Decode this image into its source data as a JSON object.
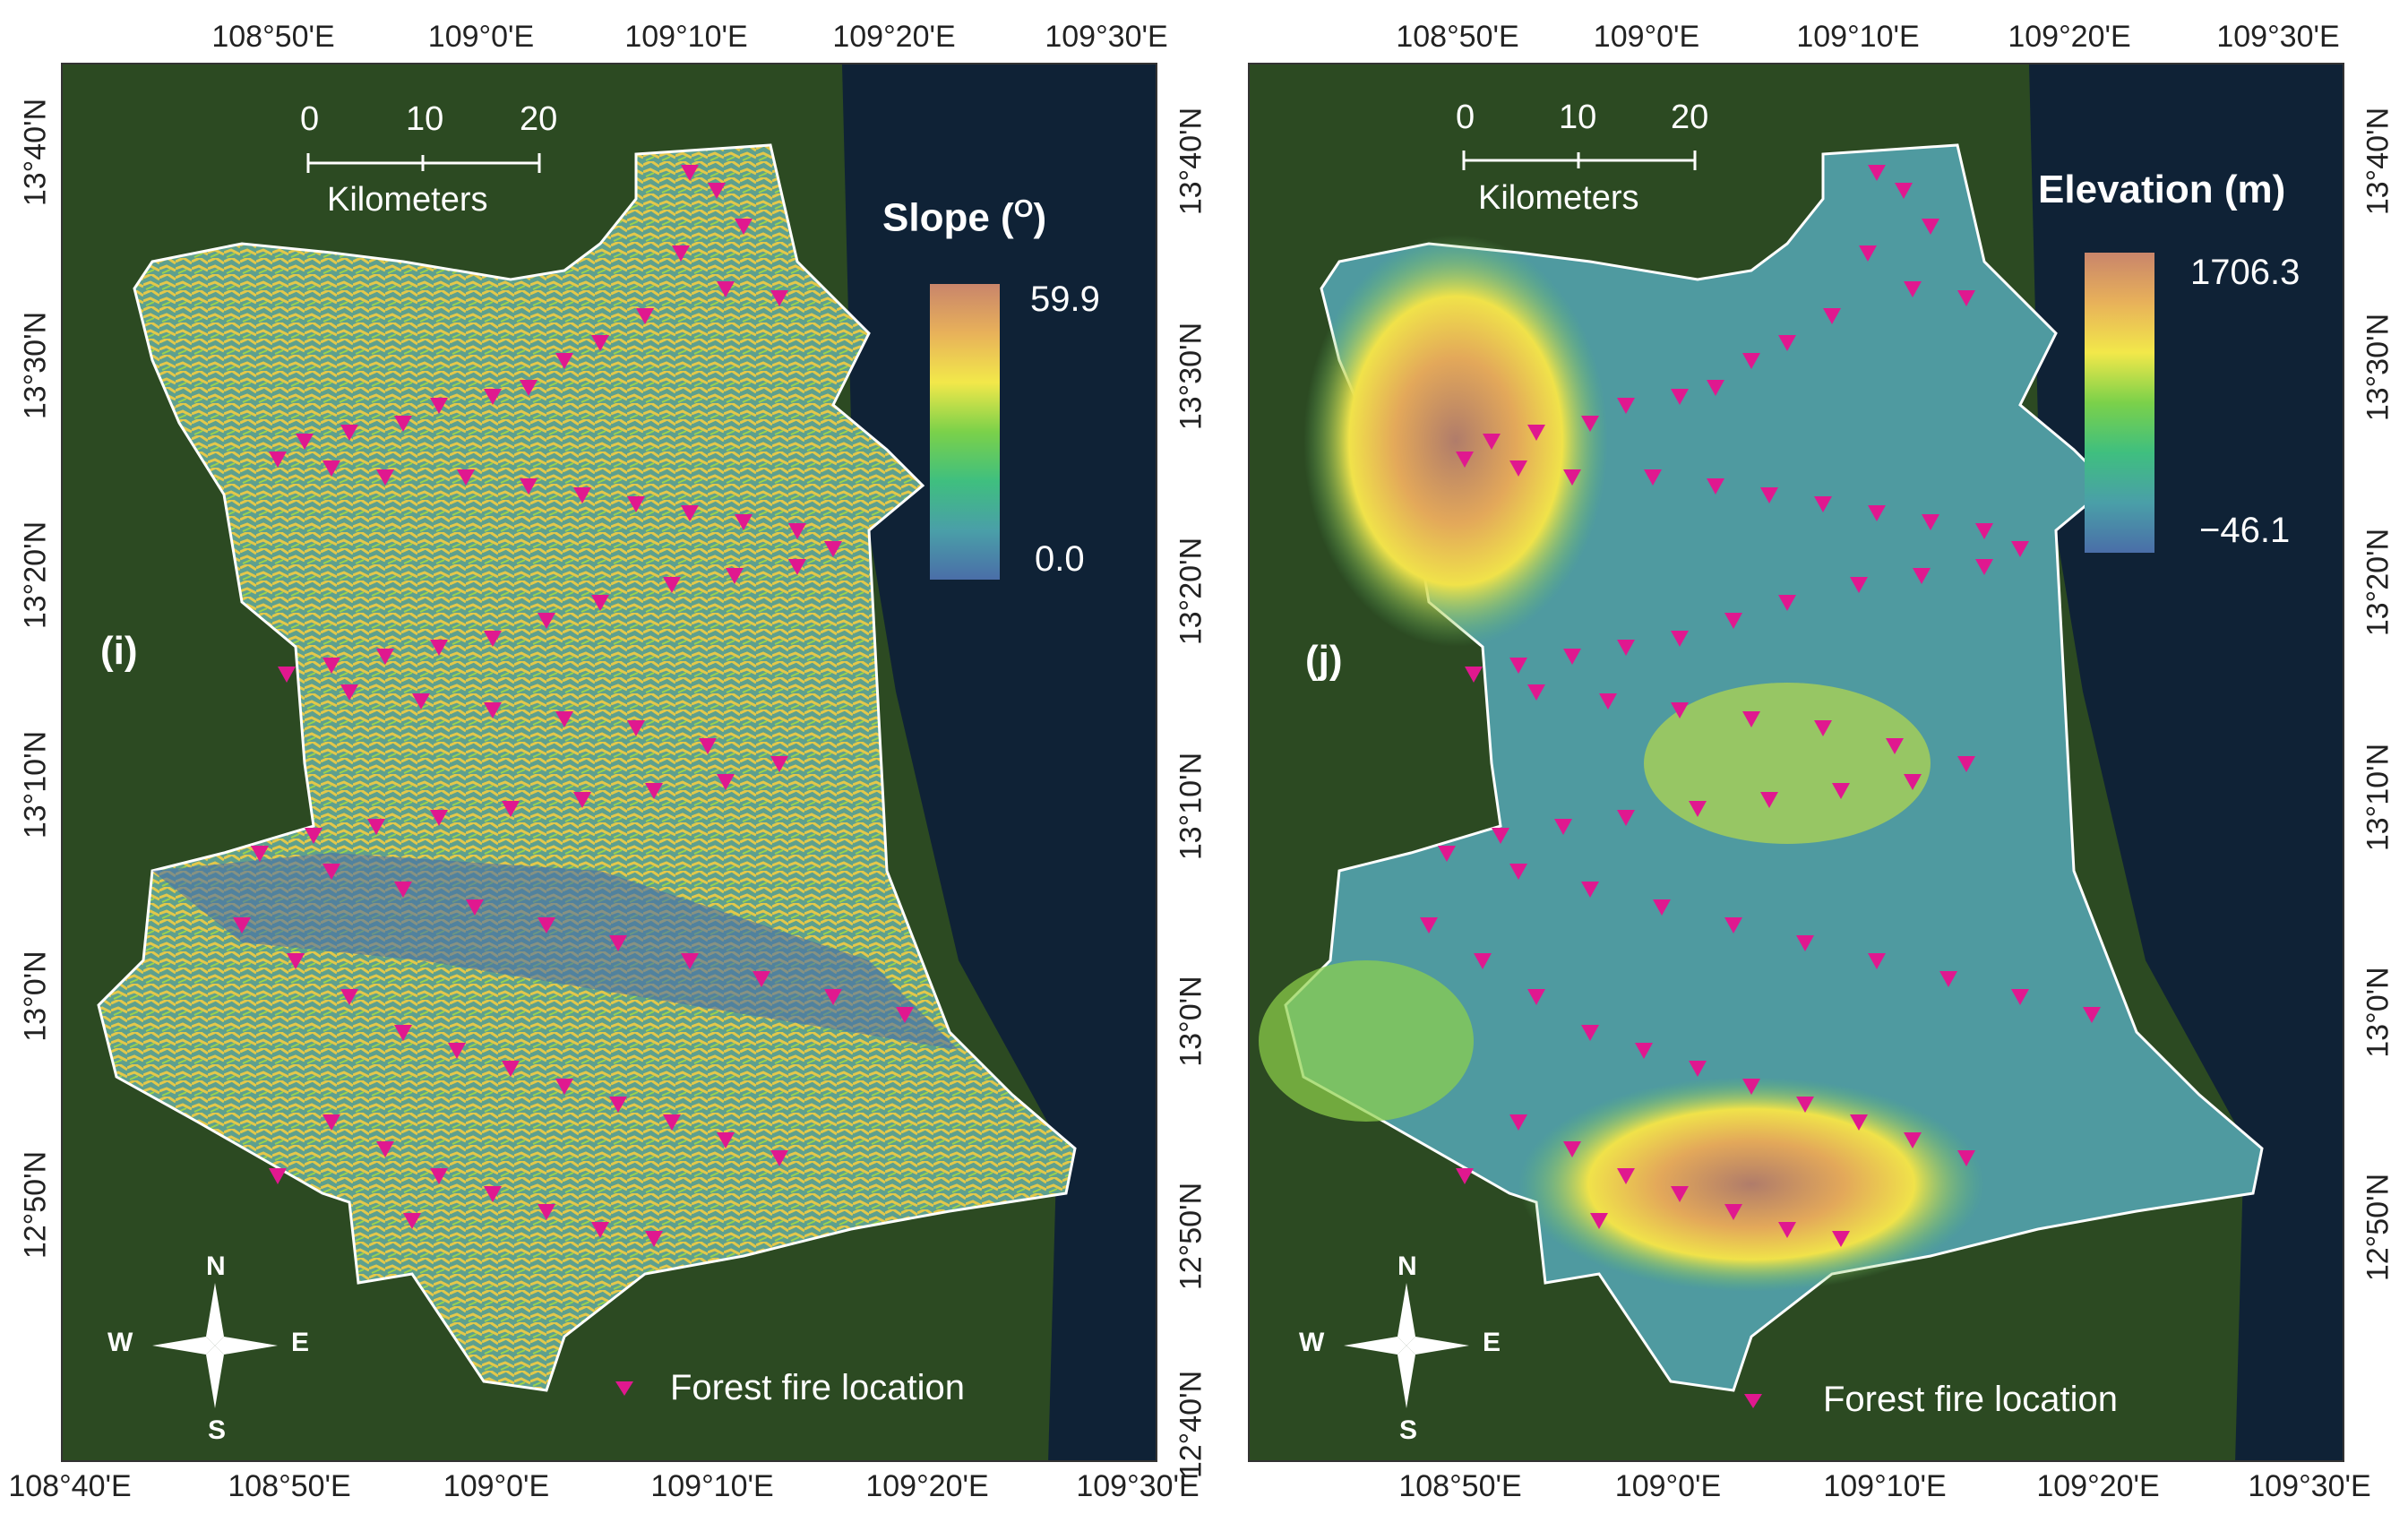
{
  "panels": [
    {
      "label": "(i)",
      "legend": {
        "title": "Slope (",
        "title_sup": "O",
        "title_end": ")",
        "max": "59.9",
        "min": "0.0",
        "colors": [
          "#c9856b",
          "#e8b15a",
          "#f2e84a",
          "#7bd14a",
          "#3fbf7f",
          "#4a9fa8",
          "#4a6ea8"
        ]
      },
      "scalebar": {
        "ticks": [
          "0",
          "10",
          "20"
        ],
        "unit": "Kilometers"
      },
      "compass": {
        "n": "N",
        "s": "S",
        "e": "E",
        "w": "W"
      },
      "fire_legend": "Forest fire location",
      "top_ticks": [
        "108°50'E",
        "109°0'E",
        "109°10'E",
        "109°20'E",
        "109°30'E"
      ],
      "bottom_ticks": [
        "108°40'E",
        "108°50'E",
        "109°0'E",
        "109°10'E",
        "109°20'E",
        "109°30'E"
      ],
      "left_ticks": [
        "13°40'N",
        "13°30'N",
        "13°20'N",
        "13°10'N",
        "13°0'N",
        "12°50'N"
      ],
      "right_ticks": [
        "13°40'N",
        "13°30'N",
        "13°20'N",
        "13°10'N",
        "13°0'N",
        "12°50'N",
        "12°40'N"
      ]
    },
    {
      "label": "(j)",
      "legend": {
        "title": "Elevation (m)",
        "max": "1706.3",
        "min": "−46.1",
        "colors": [
          "#c9856b",
          "#e8b15a",
          "#f2e84a",
          "#7bd14a",
          "#3fbf7f",
          "#4a9fa8",
          "#4a6ea8"
        ]
      },
      "scalebar": {
        "ticks": [
          "0",
          "10",
          "20"
        ],
        "unit": "Kilometers"
      },
      "compass": {
        "n": "N",
        "s": "S",
        "e": "E",
        "w": "W"
      },
      "fire_legend": "Forest fire location",
      "top_ticks": [
        "108°50'E",
        "109°0'E",
        "109°10'E",
        "109°20'E",
        "109°30'E"
      ],
      "bottom_ticks": [
        "108°50'E",
        "109°0'E",
        "109°10'E",
        "109°20'E",
        "109°30'E"
      ]
    }
  ],
  "colors": {
    "fire_marker": "#e0188f",
    "ocean": "#0f2236",
    "land": "#2c4a22",
    "boundary": "#ffffff"
  }
}
